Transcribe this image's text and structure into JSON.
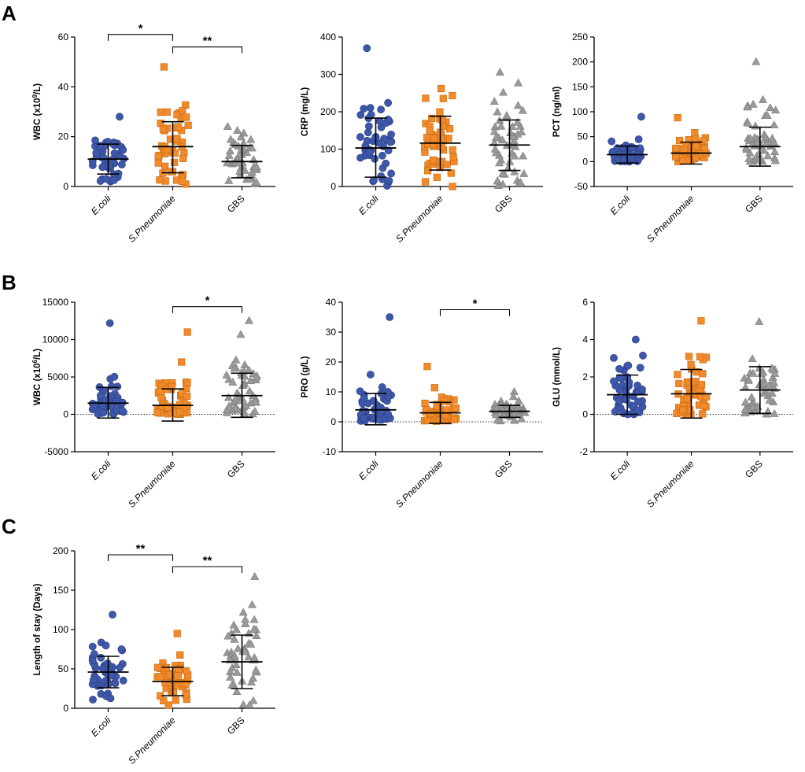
{
  "figure": {
    "panel_labels": [
      "A",
      "B",
      "C"
    ],
    "groups": [
      "E.coli",
      "S.Pneumoniae",
      "GBS"
    ],
    "group_colors": [
      "#3F57A8",
      "#F08A2A",
      "#9A9A9A"
    ],
    "group_markers": [
      "circle",
      "square",
      "triangle"
    ]
  },
  "chart_data": [
    {
      "type": "scatter",
      "panel": "A",
      "ylabel": "WBC (x10^9/L)",
      "ylabel_parts": [
        "WBC (x10",
        "9",
        "/L)"
      ],
      "ylim": [
        0,
        60
      ],
      "yticks": [
        0,
        20,
        40,
        60
      ],
      "yticklabels": [
        "0",
        "20",
        "40",
        "60"
      ],
      "categories": [
        "E.coli",
        "S.Pneumoniae",
        "GBS"
      ],
      "stats": [
        {
          "name": "E.coli",
          "mean": 11,
          "sd_low": 5,
          "sd_high": 17,
          "max": 28,
          "min": 2
        },
        {
          "name": "S.Pneumoniae",
          "mean": 16,
          "sd_low": 5.5,
          "sd_high": 26,
          "max": 48,
          "min": 1
        },
        {
          "name": "GBS",
          "mean": 10,
          "sd_low": 3.5,
          "sd_high": 16.5,
          "max": 24,
          "min": 1
        }
      ],
      "significance": [
        {
          "from": 0,
          "to": 1,
          "label": "*",
          "y": 61
        },
        {
          "from": 1,
          "to": 2,
          "label": "**",
          "y": 56
        }
      ]
    },
    {
      "type": "scatter",
      "panel": "A",
      "ylabel": "CRP (mg/L)",
      "ylabel_parts": [
        "CRP (mg/L)"
      ],
      "ylim": [
        0,
        400
      ],
      "yticks": [
        0,
        100,
        200,
        300,
        400
      ],
      "yticklabels": [
        "0",
        "100",
        "200",
        "300",
        "400"
      ],
      "categories": [
        "E.coli",
        "S.Pneumoniae",
        "GBS"
      ],
      "stats": [
        {
          "name": "E.coli",
          "mean": 103,
          "sd_low": 25,
          "sd_high": 183,
          "max": 370,
          "min": 2
        },
        {
          "name": "S.Pneumoniae",
          "mean": 116,
          "sd_low": 44,
          "sd_high": 188,
          "max": 262,
          "min": 0
        },
        {
          "name": "GBS",
          "mean": 111,
          "sd_low": 43,
          "sd_high": 178,
          "max": 305,
          "min": 2
        }
      ],
      "significance": []
    },
    {
      "type": "scatter",
      "panel": "A",
      "ylabel": "PCT (ng/ml)",
      "ylabel_parts": [
        "PCT (ng/ml)"
      ],
      "ylim": [
        -50,
        250
      ],
      "yticks": [
        -50,
        0,
        50,
        100,
        150,
        200,
        250
      ],
      "yticklabels": [
        "-50",
        "0",
        "50",
        "100",
        "150",
        "200",
        "250"
      ],
      "categories": [
        "E.coli",
        "S.Pneumoniae",
        "GBS"
      ],
      "stats": [
        {
          "name": "E.coli",
          "mean": 14,
          "sd_low": -3,
          "sd_high": 31,
          "max": 90,
          "min": 0
        },
        {
          "name": "S.Pneumoniae",
          "mean": 17,
          "sd_low": -5,
          "sd_high": 39,
          "max": 88,
          "min": 0
        },
        {
          "name": "GBS",
          "mean": 30,
          "sd_low": -9,
          "sd_high": 69,
          "max": 200,
          "min": 0
        }
      ],
      "significance": []
    },
    {
      "type": "scatter",
      "panel": "B",
      "ylabel": "WBC (x10^6/L)",
      "ylabel_parts": [
        "WBC (x10",
        "6",
        "/L)"
      ],
      "ylim": [
        -5000,
        15000
      ],
      "yticks": [
        -5000,
        0,
        5000,
        10000,
        15000
      ],
      "yticklabels": [
        "-5000",
        "0",
        "5000",
        "10000",
        "15000"
      ],
      "zero_line": true,
      "categories": [
        "E.coli",
        "S.Pneumoniae",
        "GBS"
      ],
      "stats": [
        {
          "name": "E.coli",
          "mean": 1500,
          "sd_low": -500,
          "sd_high": 3600,
          "max": 12200,
          "min": 10
        },
        {
          "name": "S.Pneumoniae",
          "mean": 1200,
          "sd_low": -900,
          "sd_high": 3400,
          "max": 11000,
          "min": 10
        },
        {
          "name": "GBS",
          "mean": 2500,
          "sd_low": -400,
          "sd_high": 5500,
          "max": 12500,
          "min": 20
        }
      ],
      "significance": [
        {
          "from": 1,
          "to": 2,
          "label": "*",
          "y": 14400
        }
      ]
    },
    {
      "type": "scatter",
      "panel": "B",
      "ylabel": "PRO (g/L)",
      "ylabel_parts": [
        "PRO (g/L)"
      ],
      "ylim": [
        -10,
        40
      ],
      "yticks": [
        -10,
        0,
        10,
        20,
        30,
        40
      ],
      "yticklabels": [
        "-10",
        "0",
        "10",
        "20",
        "30",
        "40"
      ],
      "zero_line": true,
      "categories": [
        "E.coli",
        "S.Pneumoniae",
        "GBS"
      ],
      "stats": [
        {
          "name": "E.coli",
          "mean": 4,
          "sd_low": -1,
          "sd_high": 9.5,
          "max": 35,
          "min": 0.3
        },
        {
          "name": "S.Pneumoniae",
          "mean": 3,
          "sd_low": -0.5,
          "sd_high": 6.5,
          "max": 18.5,
          "min": 0.2
        },
        {
          "name": "GBS",
          "mean": 3.5,
          "sd_low": 1.5,
          "sd_high": 5.5,
          "max": 10,
          "min": 0.2
        }
      ],
      "significance": [
        {
          "from": 1,
          "to": 2,
          "label": "*",
          "y": 37.5
        }
      ]
    },
    {
      "type": "scatter",
      "panel": "B",
      "ylabel": "GLU (mmol/L)",
      "ylabel_parts": [
        "GLU (mmol/L)"
      ],
      "ylim": [
        -2,
        6
      ],
      "yticks": [
        -2,
        0,
        2,
        4,
        6
      ],
      "yticklabels": [
        "-2",
        "0",
        "2",
        "4",
        "6"
      ],
      "zero_line": true,
      "categories": [
        "E.coli",
        "S.Pneumoniae",
        "GBS"
      ],
      "stats": [
        {
          "name": "E.coli",
          "mean": 1.05,
          "sd_low": 0,
          "sd_high": 2.1,
          "max": 4,
          "min": 0
        },
        {
          "name": "S.Pneumoniae",
          "mean": 1.1,
          "sd_low": -0.2,
          "sd_high": 2.4,
          "max": 5,
          "min": 0
        },
        {
          "name": "GBS",
          "mean": 1.3,
          "sd_low": 0.05,
          "sd_high": 2.55,
          "max": 4.95,
          "min": 0
        }
      ],
      "significance": []
    },
    {
      "type": "scatter",
      "panel": "C",
      "ylabel": "Length of stay (Days)",
      "ylabel_parts": [
        "Length of stay (Days)"
      ],
      "ylim": [
        0,
        200
      ],
      "yticks": [
        0,
        50,
        100,
        150,
        200
      ],
      "yticklabels": [
        "0",
        "50",
        "100",
        "150",
        "200"
      ],
      "categories": [
        "E.coli",
        "S.Pneumoniae",
        "GBS"
      ],
      "stats": [
        {
          "name": "E.coli",
          "mean": 46,
          "sd_low": 26,
          "sd_high": 66,
          "max": 119,
          "min": 11
        },
        {
          "name": "S.Pneumoniae",
          "mean": 34,
          "sd_low": 16,
          "sd_high": 52,
          "max": 95,
          "min": 4
        },
        {
          "name": "GBS",
          "mean": 59,
          "sd_low": 25,
          "sd_high": 93,
          "max": 167,
          "min": 4
        }
      ],
      "significance": [
        {
          "from": 0,
          "to": 1,
          "label": "**",
          "y": 195
        },
        {
          "from": 1,
          "to": 2,
          "label": "**",
          "y": 180
        }
      ]
    }
  ]
}
